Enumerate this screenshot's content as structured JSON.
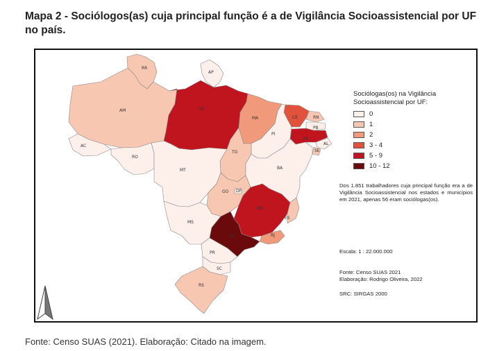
{
  "title": "Mapa 2 - Sociólogos(as) cuja principal função é a de Vigilância Socioassistencial por UF no país.",
  "legend": {
    "title": "Sociólogas(os) na Vigilância Socioassistencial por UF:",
    "classes": [
      {
        "label": "0",
        "color": "#fdf0ea"
      },
      {
        "label": "1",
        "color": "#f8c7b2"
      },
      {
        "label": "2",
        "color": "#f19a7b"
      },
      {
        "label": "3 - 4",
        "color": "#e0523c"
      },
      {
        "label": "5 - 9",
        "color": "#c0151f"
      },
      {
        "label": "10 - 12",
        "color": "#6b0a0c"
      }
    ]
  },
  "states": [
    {
      "uf": "RR",
      "class": 1
    },
    {
      "uf": "AP",
      "class": 0
    },
    {
      "uf": "AM",
      "class": 1
    },
    {
      "uf": "PA",
      "class": 4
    },
    {
      "uf": "MA",
      "class": 2
    },
    {
      "uf": "CE",
      "class": 3
    },
    {
      "uf": "RN",
      "class": 1
    },
    {
      "uf": "PB",
      "class": 0
    },
    {
      "uf": "PE",
      "class": 4
    },
    {
      "uf": "AL",
      "class": 0
    },
    {
      "uf": "SE",
      "class": 1
    },
    {
      "uf": "PI",
      "class": 0
    },
    {
      "uf": "AC",
      "class": 0
    },
    {
      "uf": "RO",
      "class": 0
    },
    {
      "uf": "TO",
      "class": 1
    },
    {
      "uf": "BA",
      "class": 0
    },
    {
      "uf": "MT",
      "class": 0
    },
    {
      "uf": "GO",
      "class": 1
    },
    {
      "uf": "DF",
      "class": 0
    },
    {
      "uf": "MG",
      "class": 4
    },
    {
      "uf": "ES",
      "class": 1
    },
    {
      "uf": "MS",
      "class": 0
    },
    {
      "uf": "SP",
      "class": 5
    },
    {
      "uf": "RJ",
      "class": 2
    },
    {
      "uf": "PR",
      "class": 0
    },
    {
      "uf": "SC",
      "class": 0
    },
    {
      "uf": "RS",
      "class": 1
    }
  ],
  "note": "Dos 1.851 trabalhadores cuja principal função era a de Vigilância Socioassistencial nos estados e municípios em 2021, apenas 56 eram sociólogas(os).",
  "scale": "Escala: 1 : 22.000.000",
  "fonte": "Fonte: Censo SUAS 2021",
  "elaboracao": "Elaboração: Rodrigo Oliveira, 2022",
  "src": "SRC: SIRGAS 2000",
  "source_caption": "Fonte: Censo SUAS (2021). Elaboração: Citado na imagem."
}
